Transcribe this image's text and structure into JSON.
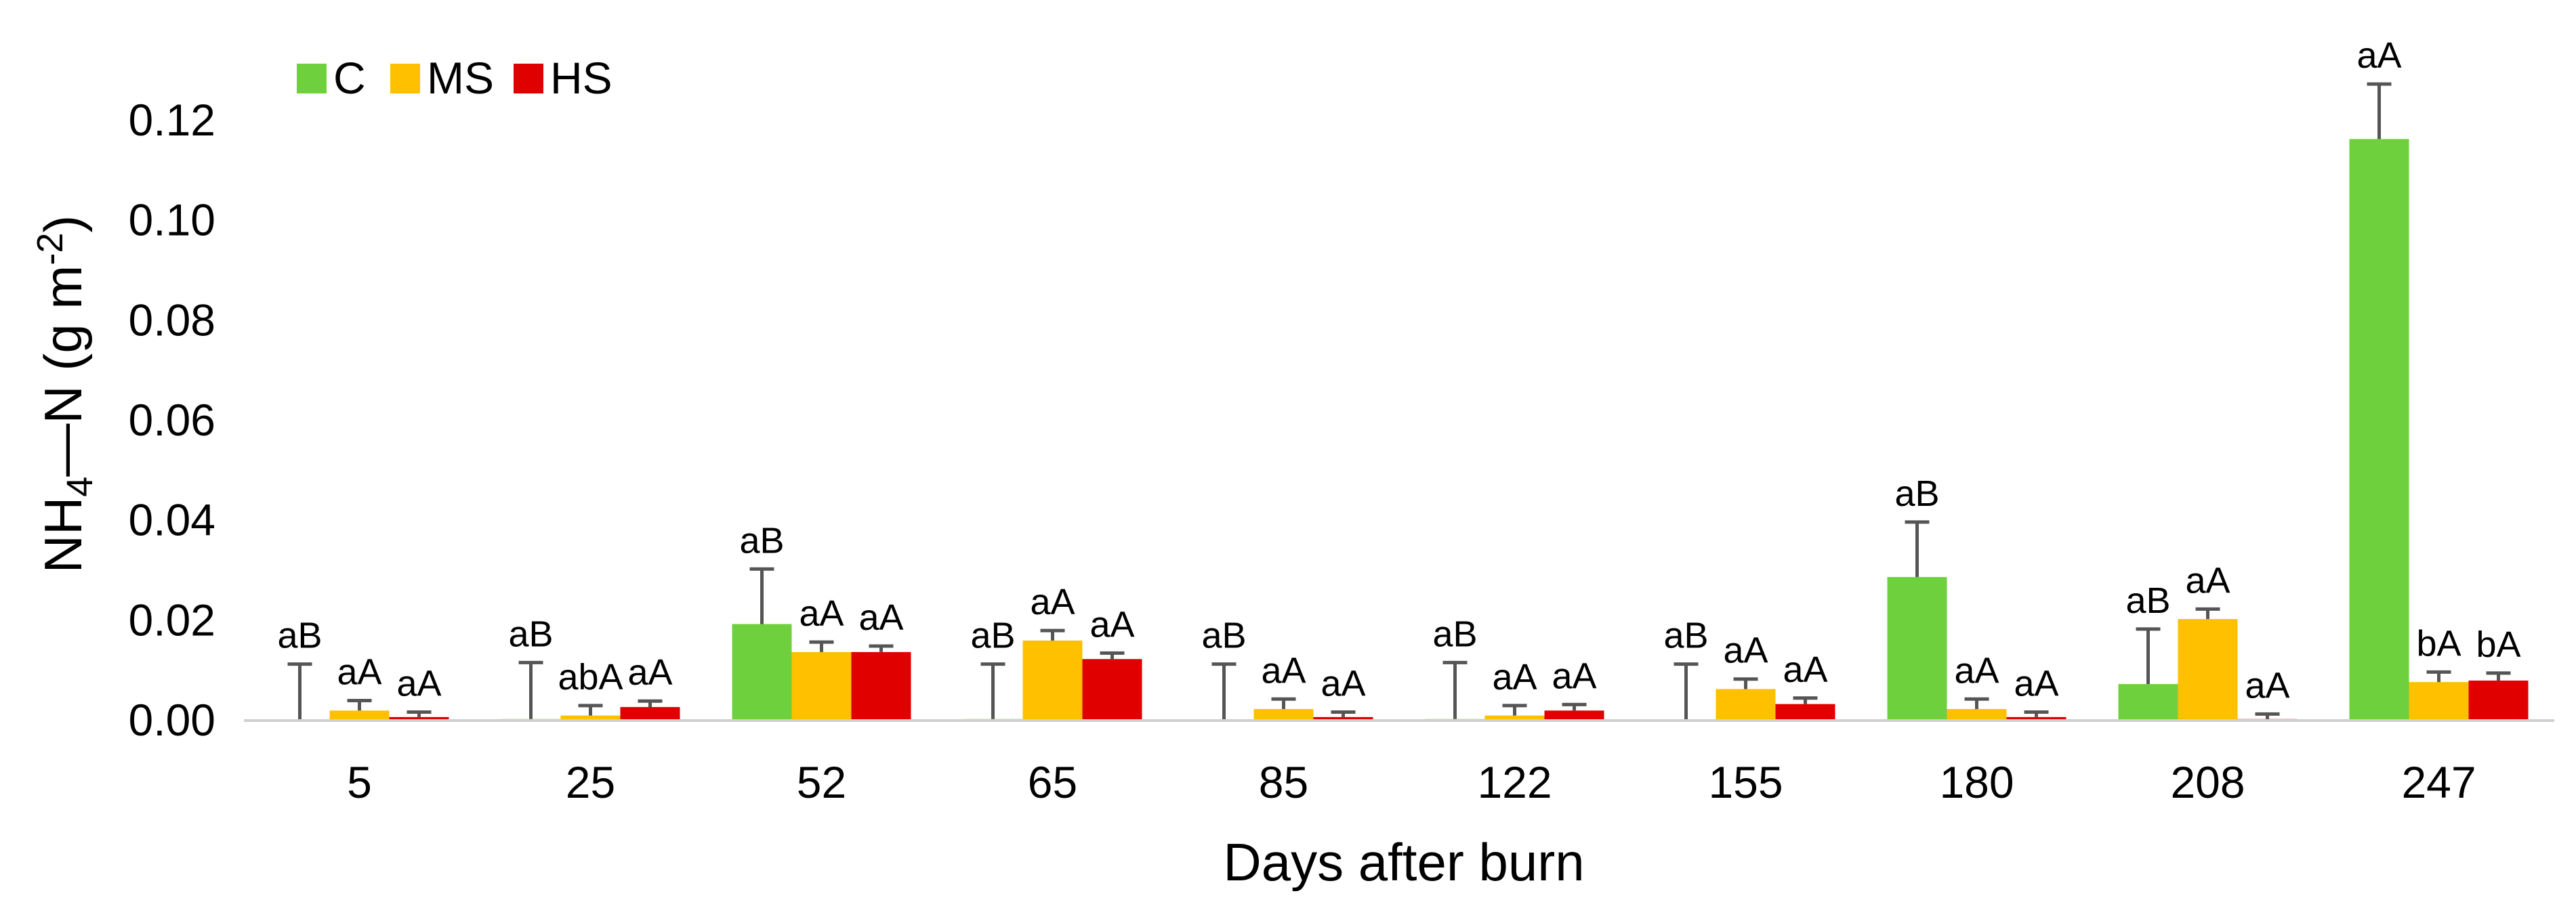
{
  "chart_data": {
    "type": "bar",
    "title": "",
    "xlabel": "Days after burn",
    "ylabel": {
      "main": "NH",
      "sub": "4",
      "mid": "—N (g m",
      "sup": "-2",
      "end": ")"
    },
    "ylim": [
      0,
      0.12
    ],
    "yticks": [
      "0.00",
      "0.02",
      "0.04",
      "0.06",
      "0.08",
      "0.10",
      "0.12"
    ],
    "categories": [
      "5",
      "25",
      "52",
      "65",
      "85",
      "122",
      "155",
      "180",
      "208",
      "247"
    ],
    "legend_position": "top-left",
    "colors": {
      "C": "#6fd03e",
      "MS": "#ffc000",
      "HS": "#e00000",
      "error": "#555555",
      "axis": "#d0d0d0"
    },
    "series": [
      {
        "name": "C",
        "values": [
          0.0,
          0.0003,
          0.0193,
          0.0003,
          0.0,
          0.0003,
          0.0,
          0.0287,
          0.0073,
          0.1163
        ],
        "errors": [
          0.0113,
          0.0113,
          0.011,
          0.011,
          0.0113,
          0.0113,
          0.0113,
          0.011,
          0.011,
          0.011
        ],
        "labels": [
          "aB",
          "aB",
          "aB",
          "aB",
          "aB",
          "aB",
          "aB",
          "aB",
          "aB",
          "aA"
        ]
      },
      {
        "name": "MS",
        "values": [
          0.002,
          0.001,
          0.0137,
          0.016,
          0.0023,
          0.001,
          0.0063,
          0.0023,
          0.0203,
          0.0077
        ],
        "errors": [
          0.002,
          0.002,
          0.002,
          0.002,
          0.002,
          0.002,
          0.002,
          0.002,
          0.002,
          0.002
        ],
        "labels": [
          "aA",
          "abA",
          "aA",
          "aA",
          "aA",
          "aA",
          "aA",
          "aA",
          "aA",
          "bA"
        ]
      },
      {
        "name": "HS",
        "values": [
          0.0007,
          0.0027,
          0.0137,
          0.0123,
          0.0007,
          0.002,
          0.0033,
          0.0007,
          0.0003,
          0.008
        ],
        "errors": [
          0.001,
          0.0012,
          0.0012,
          0.0012,
          0.001,
          0.0012,
          0.0012,
          0.001,
          0.001,
          0.0015
        ],
        "labels": [
          "aA",
          "aA",
          "aA",
          "aA",
          "aA",
          "aA",
          "aA",
          "aA",
          "aA",
          "bA"
        ]
      }
    ]
  }
}
